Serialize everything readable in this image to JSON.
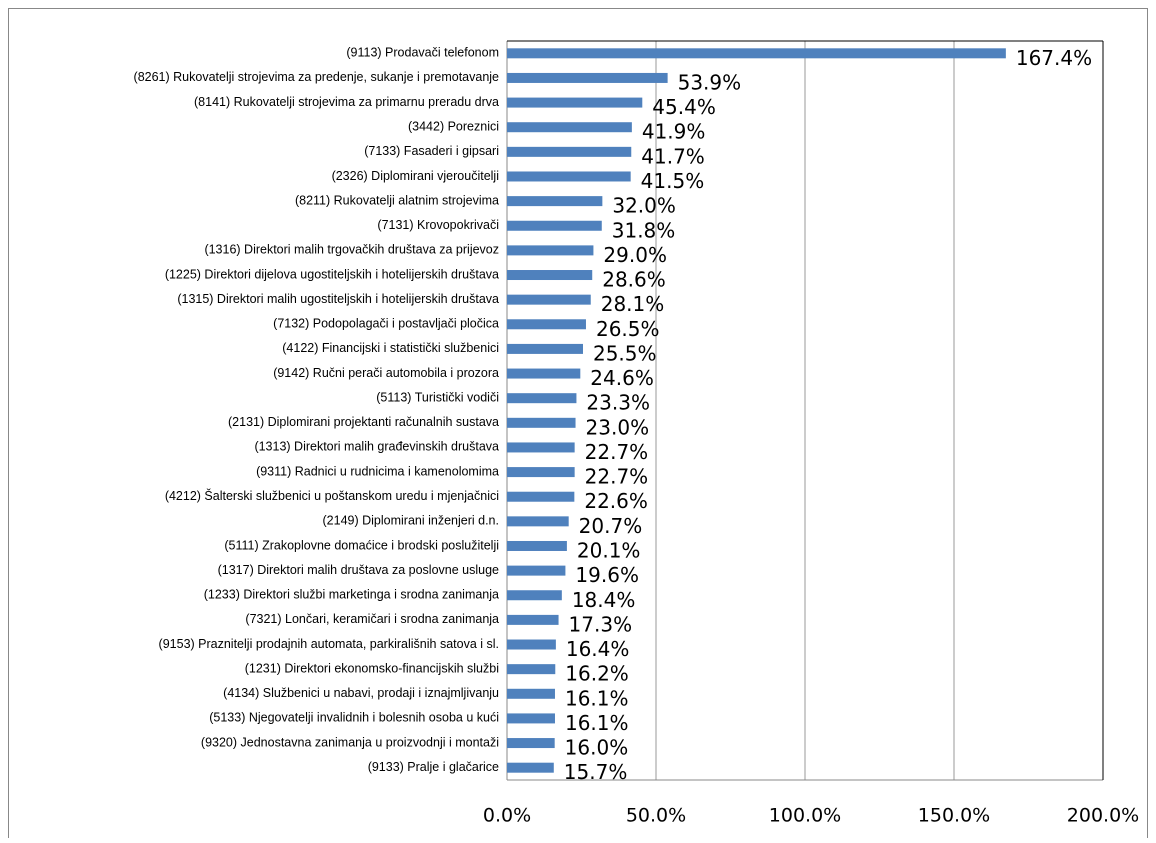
{
  "chart_data": {
    "type": "bar",
    "orientation": "horizontal",
    "color": "#4f81bd",
    "grid": true,
    "categories": [
      "(9113) Prodavači telefonom",
      "(8261) Rukovatelji strojevima za predenje, sukanje i premotavanje",
      "(8141) Rukovatelji strojevima za primarnu preradu drva",
      "(3442) Poreznici",
      "(7133) Fasaderi i gipsari",
      "(2326) Diplomirani vjeroučitelji",
      "(8211) Rukovatelji alatnim strojevima",
      "(7131) Krovopokrivači",
      "(1316) Direktori malih trgovačkih društava za prijevoz",
      "(1225) Direktori dijelova ugostiteljskih i hotelijerskih društava",
      "(1315) Direktori malih ugostiteljskih i hotelijerskih društava",
      "(7132) Podopolagači i postavljači pločica",
      "(4122) Financijski i statistički službenici",
      "(9142) Ručni perači automobila i prozora",
      "(5113) Turistički vodiči",
      "(2131) Diplomirani projektanti računalnih sustava",
      "(1313) Direktori malih građevinskih društava",
      "(9311) Radnici u rudnicima i kamenolomima",
      "(4212) Šalterski službenici u poštanskom uredu i mjenjačnici",
      "(2149) Diplomirani inženjeri d.n.",
      "(5111) Zrakoplovne domaćice i brodski poslužitelji",
      "(1317) Direktori malih društava za poslovne usluge",
      "(1233) Direktori službi marketinga i srodna zanimanja",
      "(7321) Lončari, keramičari i srodna zanimanja",
      "(9153) Praznitelji prodajnih automata, parkirališnih satova i sl.",
      "(1231) Direktori ekonomsko-financijskih službi",
      "(4134) Službenici u nabavi, prodaji i iznajmljivanju",
      "(5133) Njegovatelji invalidnih i bolesnih osoba u kući",
      "(9320) Jednostavna zanimanja u proizvodnji i montaži",
      "(9133) Pralje i glačarice"
    ],
    "values": [
      167.4,
      53.9,
      45.4,
      41.9,
      41.7,
      41.5,
      32.0,
      31.8,
      29.0,
      28.6,
      28.1,
      26.5,
      25.5,
      24.6,
      23.3,
      23.0,
      22.7,
      22.7,
      22.6,
      20.7,
      20.1,
      19.6,
      18.4,
      17.3,
      16.4,
      16.2,
      16.1,
      16.1,
      16.0,
      15.7
    ],
    "value_labels": [
      "167.4%",
      "53.9%",
      "45.4%",
      "41.9%",
      "41.7%",
      "41.5%",
      "32.0%",
      "31.8%",
      "29.0%",
      "28.6%",
      "28.1%",
      "26.5%",
      "25.5%",
      "24.6%",
      "23.3%",
      "23.0%",
      "22.7%",
      "22.7%",
      "22.6%",
      "20.7%",
      "20.1%",
      "19.6%",
      "18.4%",
      "17.3%",
      "16.4%",
      "16.2%",
      "16.1%",
      "16.1%",
      "16.0%",
      "15.7%"
    ],
    "xlim": [
      0,
      200
    ],
    "xticks": [
      {
        "value": 0,
        "label": "0.0%"
      },
      {
        "value": 50,
        "label": "50.0%"
      },
      {
        "value": 100,
        "label": "100.0%"
      },
      {
        "value": 150,
        "label": "150.0%"
      },
      {
        "value": 200,
        "label": "200.0%"
      }
    ]
  }
}
